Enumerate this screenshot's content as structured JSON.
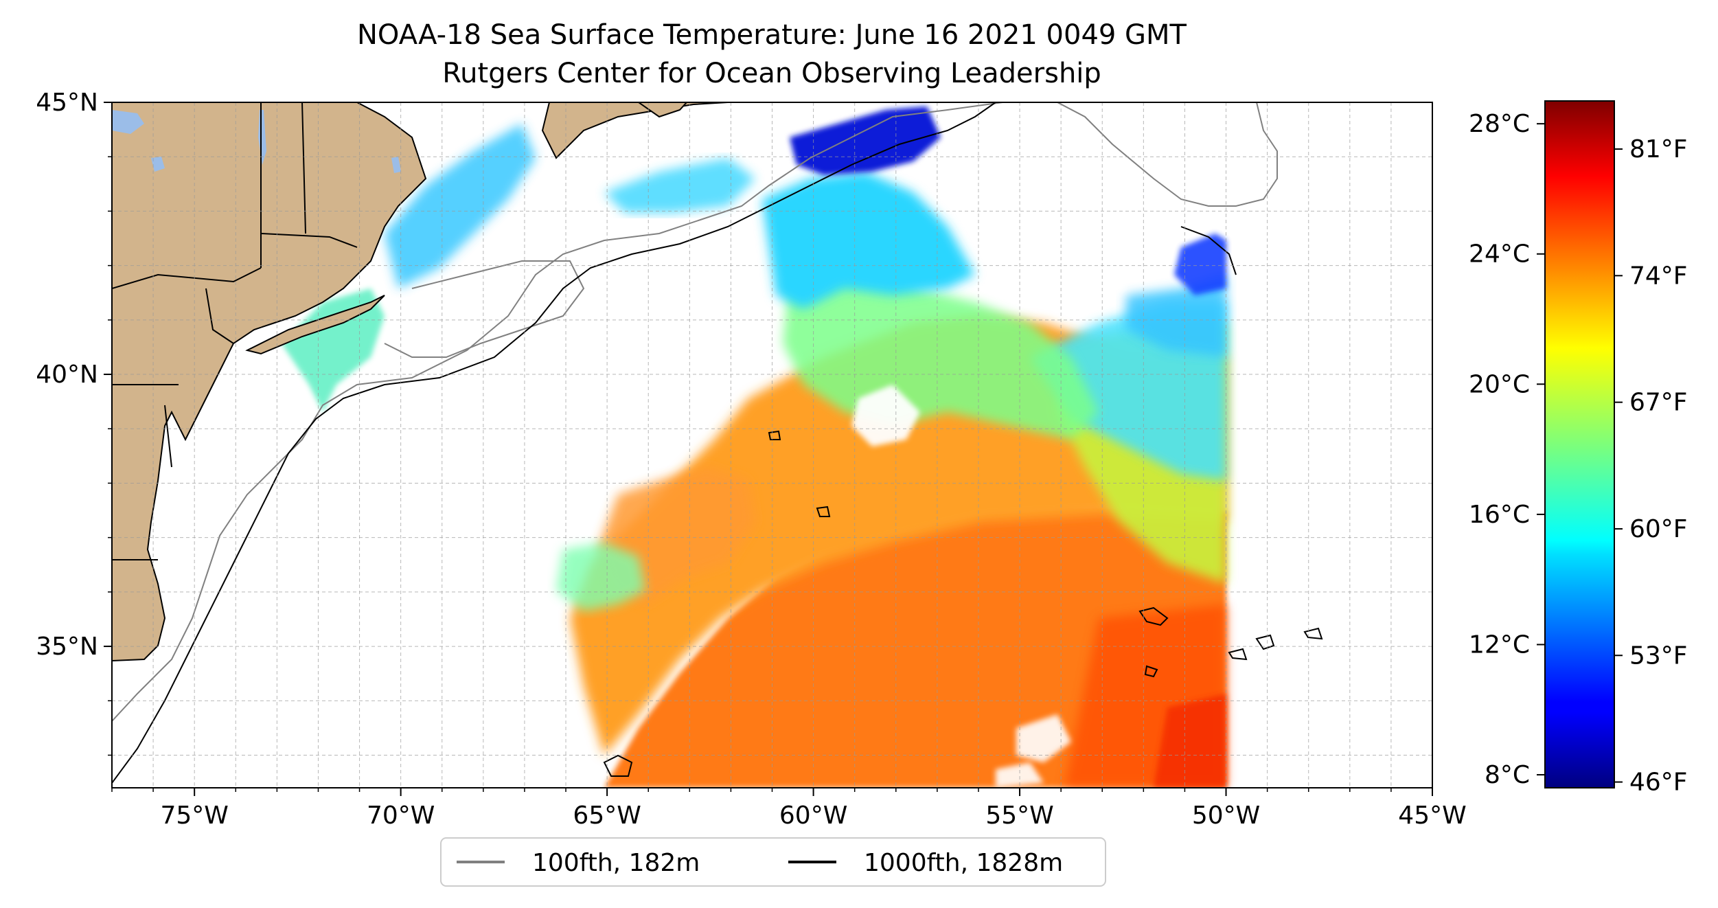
{
  "title": "NOAA-18 Sea Surface Temperature: June 16 2021 0049 GMT",
  "subtitle": "Rutgers Center for Ocean Observing Leadership",
  "map": {
    "lon_range": [
      -77,
      -45
    ],
    "lat_range": [
      32.4,
      45
    ],
    "lon_ticks": [
      {
        "v": -75,
        "label": "75°W"
      },
      {
        "v": -70,
        "label": "70°W"
      },
      {
        "v": -65,
        "label": "65°W"
      },
      {
        "v": -60,
        "label": "60°W"
      },
      {
        "v": -55,
        "label": "55°W"
      },
      {
        "v": -50,
        "label": "50°W"
      },
      {
        "v": -45,
        "label": "45°W"
      }
    ],
    "lat_ticks": [
      {
        "v": 45,
        "label": "45°N"
      },
      {
        "v": 40,
        "label": "40°N"
      },
      {
        "v": 35,
        "label": "35°N"
      }
    ],
    "grid": true,
    "land_color": "#d2b48c",
    "lake_color": "#9bbde8"
  },
  "colorbar": {
    "celsius_ticks": [
      {
        "v": 28,
        "label": "28°C"
      },
      {
        "v": 24,
        "label": "24°C"
      },
      {
        "v": 20,
        "label": "20°C"
      },
      {
        "v": 16,
        "label": "16°C"
      },
      {
        "v": 12,
        "label": "12°C"
      },
      {
        "v": 8,
        "label": "8°C"
      }
    ],
    "fahrenheit_ticks": [
      {
        "v": 81,
        "label": "81°F"
      },
      {
        "v": 74,
        "label": "74°F"
      },
      {
        "v": 67,
        "label": "67°F"
      },
      {
        "v": 60,
        "label": "60°F"
      },
      {
        "v": 53,
        "label": "53°F"
      },
      {
        "v": 46,
        "label": "46°F"
      }
    ],
    "range_c": [
      7.6,
      28.7
    ],
    "colormap": "jet"
  },
  "legend": {
    "placement": "bottom-center",
    "items": [
      {
        "label": "100fth, 182m",
        "color": "#808080"
      },
      {
        "label": "1000fth, 1828m",
        "color": "#000000"
      }
    ]
  }
}
